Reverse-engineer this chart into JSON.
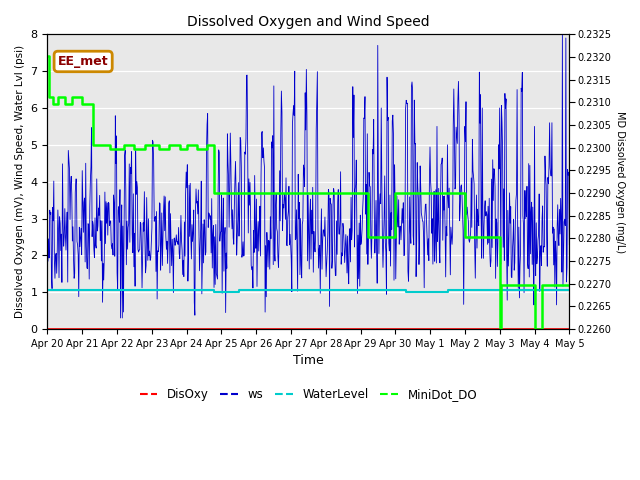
{
  "title": "Dissolved Oxygen and Wind Speed",
  "xlabel": "Time",
  "ylabel_left": "Dissolved Oxygen (mV), Wind Speed, Water Lvl (psi)",
  "ylabel_right": "MD Dissolved Oxygen (mg/L)",
  "annotation": "EE_met",
  "ylim_left": [
    0.0,
    8.0
  ],
  "ylim_right": [
    0.226,
    0.2325
  ],
  "yticks_left": [
    0.0,
    1.0,
    2.0,
    3.0,
    4.0,
    5.0,
    6.0,
    7.0,
    8.0
  ],
  "yticks_right": [
    0.226,
    0.2265,
    0.227,
    0.2275,
    0.228,
    0.2285,
    0.229,
    0.2295,
    0.23,
    0.2305,
    0.231,
    0.2315,
    0.232,
    0.2325
  ],
  "xtick_labels": [
    "Apr 20",
    "Apr 21",
    "Apr 22",
    "Apr 23",
    "Apr 24",
    "Apr 25",
    "Apr 26",
    "Apr 27",
    "Apr 28",
    "Apr 29",
    "Apr 30",
    "May 1",
    "May 2",
    "May 3",
    "May 4",
    "May 5"
  ],
  "colors": {
    "DisOxy": "#ff0000",
    "ws": "#0000cc",
    "WaterLevel": "#00cccc",
    "MiniDot_DO": "#00ff00"
  },
  "legend_labels": [
    "DisOxy",
    "ws",
    "WaterLevel",
    "MiniDot_DO"
  ],
  "background_color": "#e8e8e8",
  "figsize": [
    6.4,
    4.8
  ],
  "dpi": 100,
  "green_steps": {
    "t": [
      0.0,
      0.05,
      0.05,
      0.15,
      0.15,
      0.3,
      0.3,
      0.5,
      0.5,
      0.7,
      0.7,
      1.0,
      1.0,
      1.3,
      1.3,
      1.8,
      1.8,
      2.2,
      2.2,
      2.5,
      2.5,
      2.8,
      2.8,
      3.2,
      3.2,
      3.5,
      3.5,
      3.8,
      3.8,
      4.0,
      4.0,
      4.3,
      4.3,
      4.6,
      4.6,
      4.8,
      4.8,
      5.0,
      5.0,
      9.0,
      9.0,
      9.2,
      9.2,
      9.5,
      9.5,
      10.0,
      10.0,
      11.5,
      11.5,
      12.0,
      12.0,
      12.8,
      12.8,
      13.0,
      13.0,
      13.05,
      13.05,
      13.5,
      13.5,
      14.0,
      14.0,
      14.2,
      14.2,
      15.0
    ],
    "v": [
      7.4,
      7.4,
      6.3,
      6.3,
      6.1,
      6.1,
      6.3,
      6.3,
      6.1,
      6.1,
      6.3,
      6.3,
      6.1,
      6.1,
      5.0,
      5.0,
      4.9,
      4.9,
      5.0,
      5.0,
      4.9,
      4.9,
      5.0,
      5.0,
      4.9,
      4.9,
      5.0,
      5.0,
      4.9,
      4.9,
      5.0,
      5.0,
      4.9,
      4.9,
      5.0,
      5.0,
      3.7,
      3.7,
      3.7,
      3.7,
      3.7,
      3.7,
      2.5,
      2.5,
      2.5,
      2.5,
      3.7,
      3.7,
      3.7,
      3.7,
      2.5,
      2.5,
      2.5,
      2.5,
      0.0,
      0.0,
      1.2,
      1.2,
      1.2,
      1.2,
      0.0,
      0.0,
      1.2,
      1.2
    ]
  },
  "water_steps": {
    "t": [
      0.0,
      4.8,
      4.8,
      5.5,
      5.5,
      10.3,
      10.3,
      11.5,
      11.5,
      15.0
    ],
    "v": [
      1.05,
      1.05,
      1.0,
      1.0,
      1.05,
      1.05,
      1.0,
      1.0,
      1.05,
      1.05
    ]
  }
}
